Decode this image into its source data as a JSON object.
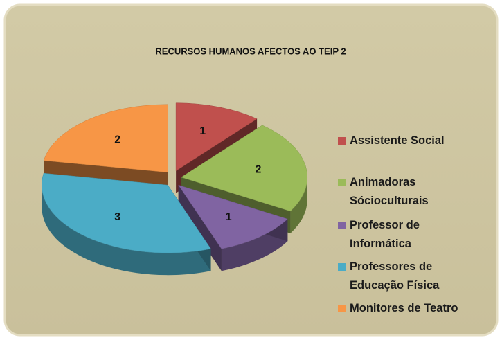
{
  "chart_data": {
    "type": "pie",
    "title": "RECURSOS HUMANOS AFECTOS AO  TEIP 2",
    "categories": [
      "Assistente Social",
      "Animadoras Sócioculturais",
      "Professor de Informática",
      "Professores de Educação Física",
      "Monitores  de Teatro"
    ],
    "values": [
      1,
      2,
      1,
      3,
      2
    ],
    "colors": [
      "#c0504d",
      "#9bbb59",
      "#8064a2",
      "#4bacc6",
      "#f79646"
    ],
    "legend": "right"
  }
}
